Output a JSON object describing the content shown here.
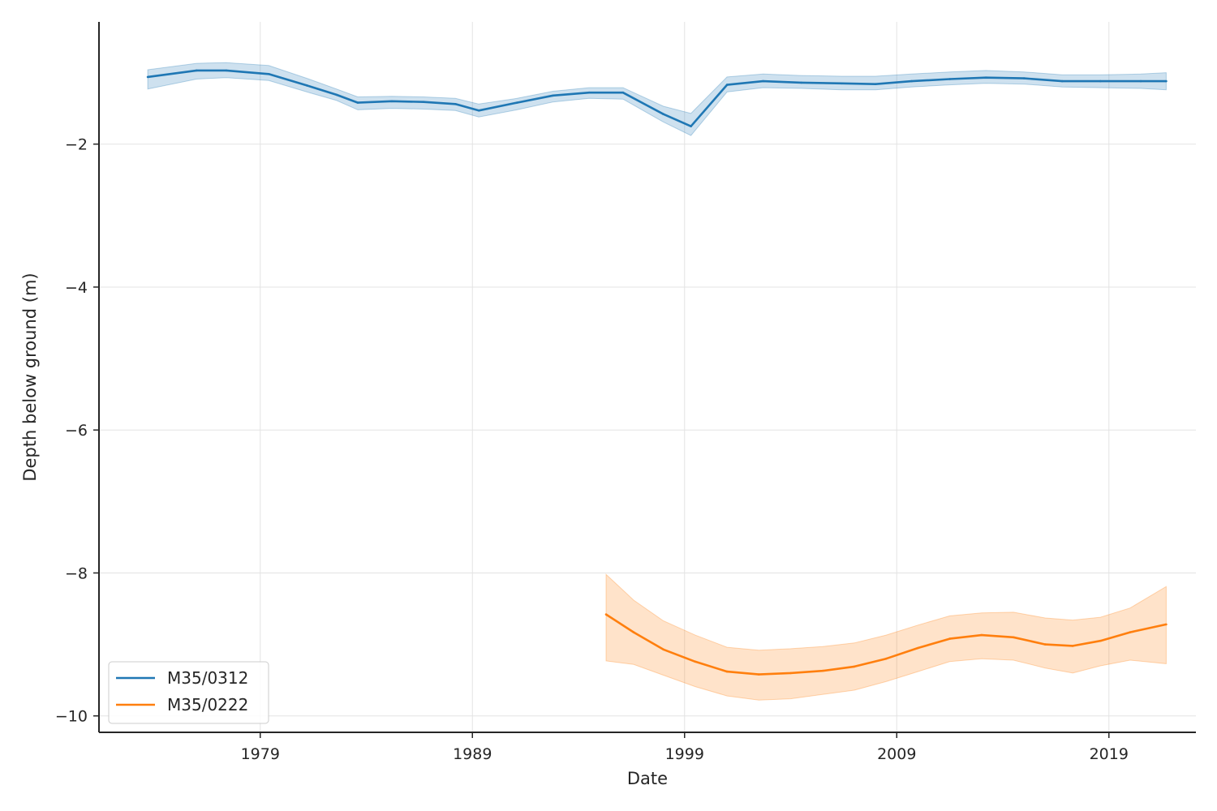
{
  "chart_data": {
    "type": "line",
    "title": "",
    "xlabel": "Date",
    "ylabel": "Depth below ground (m)",
    "xlim": [
      1971.4,
      2023.1
    ],
    "ylim": [
      -10.23,
      -0.29
    ],
    "xticks": [
      1979,
      1989,
      1999,
      2009,
      2019
    ],
    "yticks": [
      -2,
      -4,
      -6,
      -8,
      -10
    ],
    "ytick_labels": [
      "−2",
      "−4",
      "−6",
      "−8",
      "−10"
    ],
    "grid": true,
    "legend_position": "lower-left",
    "series": [
      {
        "name": "M35/0312",
        "color": "#1f77b4",
        "band_color": "#1f77b4",
        "x": [
          1973.7,
          1976.0,
          1977.4,
          1979.4,
          1981.2,
          1982.6,
          1983.6,
          1985.2,
          1986.7,
          1988.2,
          1989.3,
          1991.1,
          1992.8,
          1994.5,
          1996.1,
          1998.0,
          1999.3,
          2001.0,
          2002.7,
          2004.5,
          2006.4,
          2008.0,
          2009.7,
          2011.5,
          2013.2,
          2015.0,
          2016.8,
          2018.6,
          2020.5,
          2021.7
        ],
        "y": [
          -1.06,
          -0.97,
          -0.97,
          -1.02,
          -1.18,
          -1.31,
          -1.42,
          -1.4,
          -1.41,
          -1.44,
          -1.53,
          -1.42,
          -1.32,
          -1.28,
          -1.28,
          -1.58,
          -1.75,
          -1.17,
          -1.12,
          -1.14,
          -1.15,
          -1.16,
          -1.12,
          -1.09,
          -1.07,
          -1.08,
          -1.12,
          -1.12,
          -1.12,
          -1.12
        ],
        "upper": [
          -0.96,
          -0.87,
          -0.86,
          -0.9,
          -1.08,
          -1.23,
          -1.34,
          -1.33,
          -1.34,
          -1.36,
          -1.44,
          -1.36,
          -1.26,
          -1.21,
          -1.21,
          -1.47,
          -1.57,
          -1.06,
          -1.02,
          -1.04,
          -1.05,
          -1.05,
          -1.02,
          -0.99,
          -0.97,
          -0.99,
          -1.03,
          -1.03,
          -1.02,
          -1.0
        ],
        "lower": [
          -1.23,
          -1.09,
          -1.07,
          -1.11,
          -1.27,
          -1.39,
          -1.52,
          -1.5,
          -1.51,
          -1.53,
          -1.62,
          -1.52,
          -1.41,
          -1.36,
          -1.37,
          -1.69,
          -1.88,
          -1.27,
          -1.21,
          -1.22,
          -1.24,
          -1.24,
          -1.2,
          -1.17,
          -1.15,
          -1.16,
          -1.2,
          -1.21,
          -1.22,
          -1.24
        ]
      },
      {
        "name": "M35/0222",
        "color": "#ff7f0e",
        "band_color": "#ff7f0e",
        "x": [
          1995.3,
          1996.6,
          1998.0,
          1999.5,
          2001.0,
          2002.5,
          2004.0,
          2005.5,
          2007.0,
          2008.5,
          2010.0,
          2011.5,
          2013.0,
          2014.5,
          2016.0,
          2017.3,
          2018.6,
          2020.0,
          2021.7
        ],
        "y": [
          -8.58,
          -8.83,
          -9.07,
          -9.24,
          -9.38,
          -9.42,
          -9.4,
          -9.37,
          -9.31,
          -9.2,
          -9.05,
          -8.92,
          -8.87,
          -8.9,
          -9.0,
          -9.02,
          -8.95,
          -8.83,
          -8.72
        ],
        "upper": [
          -8.02,
          -8.38,
          -8.67,
          -8.87,
          -9.04,
          -9.08,
          -9.06,
          -9.03,
          -8.98,
          -8.87,
          -8.73,
          -8.6,
          -8.56,
          -8.55,
          -8.63,
          -8.66,
          -8.62,
          -8.49,
          -8.19
        ],
        "lower": [
          -9.23,
          -9.28,
          -9.43,
          -9.59,
          -9.72,
          -9.78,
          -9.76,
          -9.7,
          -9.64,
          -9.52,
          -9.38,
          -9.24,
          -9.2,
          -9.22,
          -9.33,
          -9.4,
          -9.3,
          -9.22,
          -9.27
        ]
      }
    ]
  }
}
